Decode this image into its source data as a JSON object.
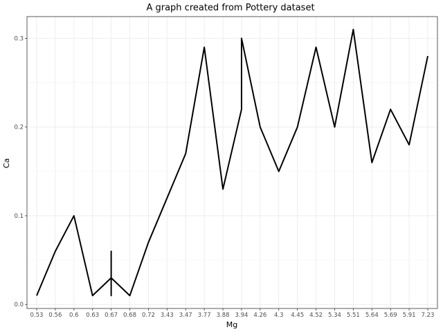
{
  "chart_data": {
    "type": "line",
    "title": "A graph created from Pottery dataset",
    "xlabel": "Mg",
    "ylabel": "Ca",
    "x_axis_type": "categorical",
    "categories": [
      "0.53",
      "0.56",
      "0.6",
      "0.63",
      "0.67",
      "0.68",
      "0.72",
      "3.43",
      "3.47",
      "3.77",
      "3.88",
      "3.94",
      "4.26",
      "4.3",
      "4.45",
      "4.52",
      "5.34",
      "5.51",
      "5.64",
      "5.69",
      "5.91",
      "7.23"
    ],
    "points": [
      {
        "x": "0.53",
        "y": 0.01
      },
      {
        "x": "0.56",
        "y": 0.06
      },
      {
        "x": "0.6",
        "y": 0.1
      },
      {
        "x": "0.63",
        "y": 0.01
      },
      {
        "x": "0.67",
        "y": 0.03
      },
      {
        "x": "0.67",
        "y": 0.06
      },
      {
        "x": "0.67",
        "y": 0.01
      },
      {
        "x": "0.67",
        "y": 0.03
      },
      {
        "x": "0.68",
        "y": 0.01
      },
      {
        "x": "0.72",
        "y": 0.07
      },
      {
        "x": "3.43",
        "y": 0.12
      },
      {
        "x": "3.47",
        "y": 0.17
      },
      {
        "x": "3.77",
        "y": 0.29
      },
      {
        "x": "3.88",
        "y": 0.13
      },
      {
        "x": "3.94",
        "y": 0.22
      },
      {
        "x": "3.94",
        "y": 0.3
      },
      {
        "x": "4.26",
        "y": 0.2
      },
      {
        "x": "4.3",
        "y": 0.15
      },
      {
        "x": "4.45",
        "y": 0.2
      },
      {
        "x": "4.52",
        "y": 0.29
      },
      {
        "x": "5.34",
        "y": 0.2
      },
      {
        "x": "5.51",
        "y": 0.31
      },
      {
        "x": "5.64",
        "y": 0.16
      },
      {
        "x": "5.69",
        "y": 0.22
      },
      {
        "x": "5.91",
        "y": 0.18
      },
      {
        "x": "7.23",
        "y": 0.28
      }
    ],
    "ylim": [
      -0.0045,
      0.3245
    ],
    "y_ticks": [
      0.0,
      0.1,
      0.2,
      0.3
    ],
    "y_tick_labels": [
      "0.0",
      "0.1",
      "0.2",
      "0.3"
    ],
    "grid": true,
    "legend": "none",
    "line_color": "#000000"
  }
}
